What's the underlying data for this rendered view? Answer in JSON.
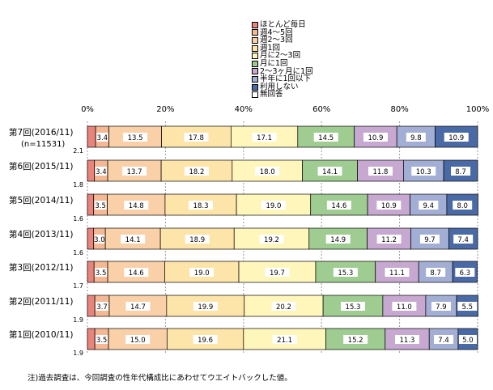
{
  "chart_data": {
    "type": "bar",
    "stacked": "horizontal-100-percent",
    "categories": [
      "第7回(2016/11)",
      "第6回(2015/11)",
      "第5回(2014/11)",
      "第4回(2013/11)",
      "第3回(2012/11)",
      "第2回(2011/11)",
      "第1回(2010/11)"
    ],
    "sample_note": "(n=11531)",
    "x_ticks": [
      "0%",
      "20%",
      "40%",
      "60%",
      "80%",
      "100%"
    ],
    "xlim": [
      0,
      100
    ],
    "legend_position": "top",
    "series": [
      {
        "name": "ほとんど毎日",
        "color": "#e8847c",
        "values": [
          2.1,
          1.8,
          1.6,
          1.6,
          1.7,
          1.9,
          1.9
        ],
        "labels": [
          "2.1",
          "1.8",
          "1.6",
          "1.6",
          "1.7",
          "1.9",
          "1.9"
        ]
      },
      {
        "name": "週4～5回",
        "color": "#f5b894",
        "values": [
          3.4,
          3.4,
          3.5,
          3.0,
          3.5,
          3.7,
          3.5
        ],
        "labels": [
          "3.4",
          "3.4",
          "3.5",
          "3.0",
          "3.5",
          "3.7",
          "3.5"
        ]
      },
      {
        "name": "週2～3回",
        "color": "#f9d0a8",
        "values": [
          13.5,
          13.7,
          14.8,
          14.1,
          14.6,
          14.7,
          15.0
        ],
        "labels": [
          "13.5",
          "13.7",
          "14.8",
          "14.1",
          "14.6",
          "14.7",
          "15.0"
        ]
      },
      {
        "name": "週1回",
        "color": "#fde4a8",
        "values": [
          17.8,
          18.2,
          18.3,
          18.9,
          19.0,
          19.9,
          19.6
        ],
        "labels": [
          "17.8",
          "18.2",
          "18.3",
          "18.9",
          "19.0",
          "19.9",
          "19.6"
        ]
      },
      {
        "name": "月に2～3回",
        "color": "#fff6bc",
        "values": [
          17.1,
          18.0,
          19.0,
          19.2,
          19.7,
          20.2,
          21.1
        ],
        "labels": [
          "17.1",
          "18.0",
          "19.0",
          "19.2",
          "19.7",
          "20.2",
          "21.1"
        ]
      },
      {
        "name": "月に1回",
        "color": "#9fcc90",
        "values": [
          14.5,
          14.1,
          14.6,
          14.9,
          15.3,
          15.3,
          15.2
        ],
        "labels": [
          "14.5",
          "14.1",
          "14.6",
          "14.9",
          "15.3",
          "15.3",
          "15.2"
        ]
      },
      {
        "name": "2～3ヶ月に1回",
        "color": "#c6a8d0",
        "values": [
          10.9,
          11.8,
          10.9,
          11.2,
          11.1,
          11.0,
          11.3
        ],
        "labels": [
          "10.9",
          "11.8",
          "10.9",
          "11.2",
          "11.1",
          "11.0",
          "11.3"
        ]
      },
      {
        "name": "半年に1回以下",
        "color": "#a2aed4",
        "values": [
          9.8,
          10.3,
          9.4,
          9.7,
          8.7,
          7.9,
          7.4
        ],
        "labels": [
          "9.8",
          "10.3",
          "9.4",
          "9.7",
          "8.7",
          "7.9",
          "7.4"
        ]
      },
      {
        "name": "利用しない",
        "color": "#4a6aa6",
        "values": [
          10.9,
          8.7,
          8.0,
          7.4,
          6.3,
          5.5,
          5.0
        ],
        "labels": [
          "10.9",
          "8.7",
          "8.0",
          "7.4",
          "6.3",
          "5.5",
          "5.0"
        ]
      },
      {
        "name": "無回答",
        "color": "#ffffff",
        "values": [
          0,
          0,
          0,
          0,
          0,
          0,
          0
        ],
        "labels": []
      }
    ],
    "footnote": "注)過去調査は、今回調査の性年代構成比にあわせてウエイトバックした値。"
  }
}
